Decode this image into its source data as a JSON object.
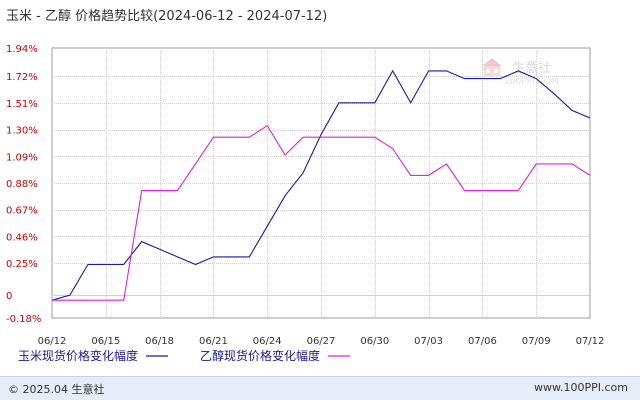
{
  "chart_data": {
    "type": "line",
    "title": "玉米 - 乙醇 价格趋势比较(2024-06-12 - 2024-07-12)",
    "xlabel": "",
    "ylabel": "",
    "ylim": [
      -0.18,
      1.94
    ],
    "y_ticks": [
      "1.94%",
      "1.72%",
      "1.51%",
      "1.30%",
      "1.09%",
      "0.88%",
      "0.67%",
      "0.46%",
      "0.25%",
      "0",
      "-0.18%"
    ],
    "y_tick_values": [
      1.94,
      1.72,
      1.51,
      1.3,
      1.09,
      0.88,
      0.67,
      0.46,
      0.25,
      0,
      -0.18
    ],
    "x_ticks": [
      "06/12",
      "06/15",
      "06/18",
      "06/21",
      "06/24",
      "06/27",
      "06/30",
      "07/03",
      "07/06",
      "07/09",
      "07/12"
    ],
    "x_tick_days": [
      0,
      3,
      6,
      9,
      12,
      15,
      18,
      21,
      24,
      27,
      30
    ],
    "grid": true,
    "legend_position": "bottom-left",
    "series": [
      {
        "name": "玉米现货价格变化幅度",
        "color": "#1a1aa6",
        "x": [
          0,
          1,
          2,
          3,
          4,
          5,
          6,
          7,
          8,
          9,
          10,
          11,
          12,
          13,
          14,
          15,
          16,
          17,
          18,
          19,
          20,
          21,
          22,
          23,
          24,
          25,
          26,
          27,
          28,
          29,
          30
        ],
        "values": [
          -0.04,
          0.0,
          0.24,
          0.24,
          0.24,
          0.42,
          0.36,
          0.3,
          0.24,
          0.3,
          0.3,
          0.3,
          0.54,
          0.78,
          0.96,
          1.26,
          1.51,
          1.51,
          1.51,
          1.76,
          1.51,
          1.76,
          1.76,
          1.7,
          1.7,
          1.7,
          1.76,
          1.7,
          1.58,
          1.45,
          1.39
        ]
      },
      {
        "name": "乙醇现货价格变化幅度",
        "color": "#e020e0",
        "x": [
          0,
          1,
          2,
          3,
          4,
          5,
          6,
          7,
          8,
          9,
          10,
          11,
          12,
          13,
          14,
          15,
          16,
          17,
          18,
          19,
          20,
          21,
          22,
          23,
          24,
          25,
          26,
          27,
          28,
          29,
          30
        ],
        "values": [
          -0.04,
          -0.04,
          -0.04,
          -0.04,
          -0.04,
          0.82,
          0.82,
          0.82,
          1.03,
          1.24,
          1.24,
          1.24,
          1.33,
          1.1,
          1.24,
          1.24,
          1.24,
          1.24,
          1.24,
          1.15,
          0.94,
          0.94,
          1.03,
          0.82,
          0.82,
          0.82,
          0.82,
          1.03,
          1.03,
          1.03,
          0.94
        ]
      }
    ]
  },
  "watermark": {
    "brand": "生意社",
    "site": "100PPI.COM"
  },
  "footer": {
    "copyright": "© 2025.04 生意社",
    "url": "www.100PPI.com"
  }
}
